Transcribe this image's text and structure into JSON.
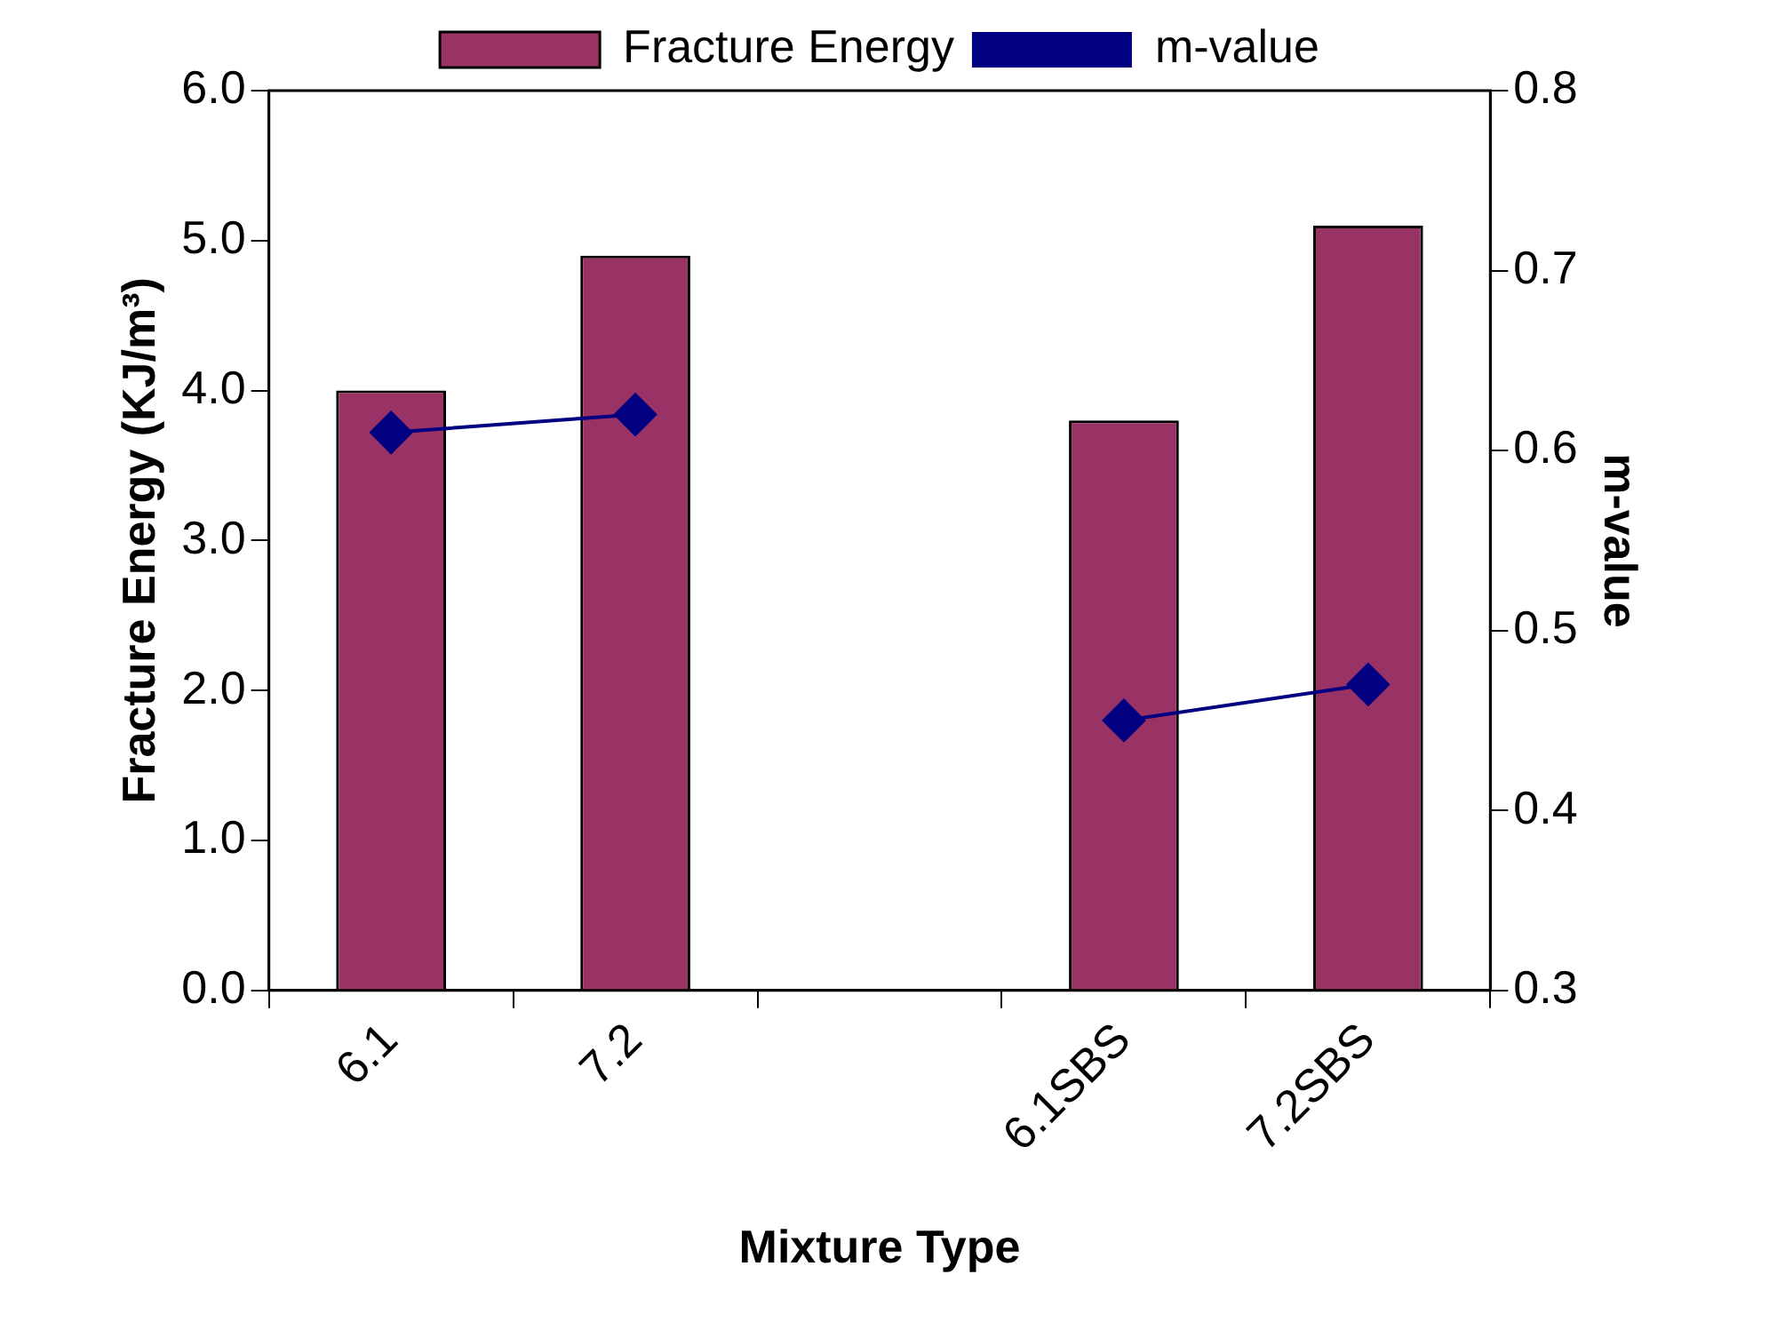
{
  "chart_data": {
    "type": "bar",
    "xlabel": "Mixture Type",
    "ylabel": "Fracture Energy (KJ/m³)",
    "y2label": "m-value",
    "categories": [
      "6.1",
      "7.2",
      null,
      "6.1SBS",
      "7.2SBS"
    ],
    "series": [
      {
        "name": "Fracture Energy",
        "color": "#993366",
        "values": [
          4.0,
          4.9,
          null,
          3.8,
          5.1
        ]
      },
      {
        "name": "m-value",
        "type": "line",
        "axis": "y2",
        "color": "#000080",
        "marker": "diamond",
        "values": [
          0.61,
          0.62,
          null,
          0.45,
          0.47
        ]
      }
    ],
    "ylim": [
      0,
      6
    ],
    "yticks": [
      {
        "value": 0,
        "label": "0.0"
      },
      {
        "value": 1,
        "label": "1.0"
      },
      {
        "value": 2,
        "label": "2.0"
      },
      {
        "value": 3,
        "label": "3.0"
      },
      {
        "value": 4,
        "label": "4.0"
      },
      {
        "value": 5,
        "label": "5.0"
      },
      {
        "value": 6,
        "label": "6.0"
      }
    ],
    "y2lim": [
      0.3,
      0.8
    ],
    "y2ticks": [
      0.3,
      0.4,
      0.5,
      0.6,
      0.7,
      0.8
    ],
    "legend": "top",
    "grid": false
  }
}
